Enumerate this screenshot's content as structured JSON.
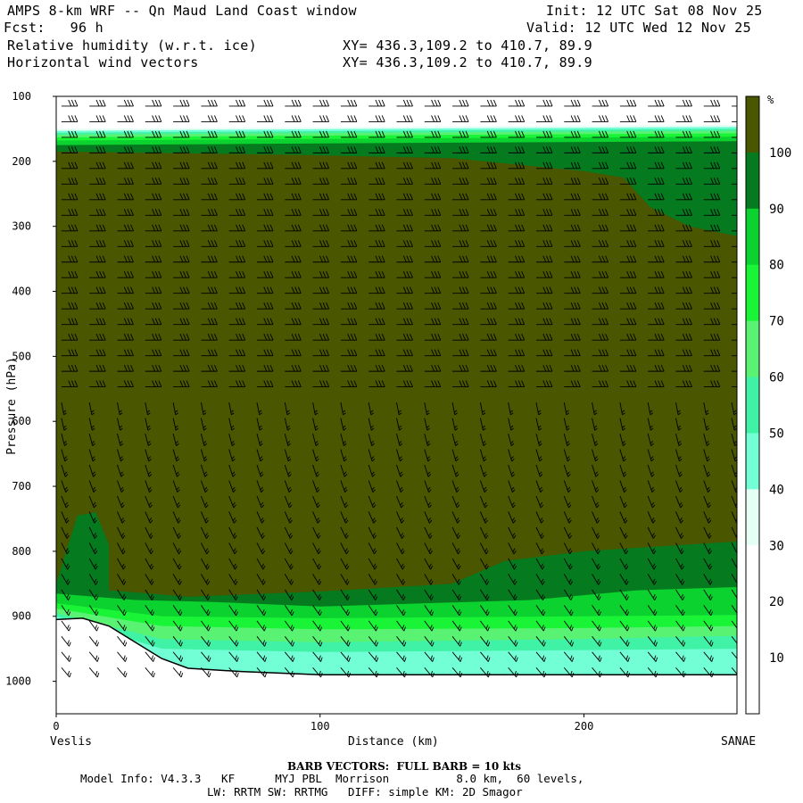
{
  "header": {
    "title": "AMPS 8-km WRF -- Qn Maud Land Coast window",
    "init_text": "Init: 12 UTC Sat 08 Nov 25",
    "fcst_text": "Fcst:   96 h",
    "valid_text": "Valid: 12 UTC Wed 12 Nov 25",
    "field1": "Relative humidity (w.r.t. ice)",
    "field2": "Horizontal wind vectors",
    "xy1": "XY= 436.3,109.2 to 410.7, 89.9",
    "xy2": "XY= 436.3,109.2 to 410.7, 89.9"
  },
  "footer": {
    "barb_note": "BARB VECTORS:  FULL BARB = 10 kts",
    "model_info": "Model Info: V4.3.3   KF      MYJ PBL  Morrison          8.0 km,  60 levels,",
    "model_info2": "LW: RRTM SW: RRTMG   DIFF: simple KM: 2D Smagor"
  },
  "colors": {
    "rh_0_30": "#ffffff",
    "rh_30_40": "#e6fff5",
    "rh_40_50": "#73ffd6",
    "rh_50_60": "#3ff2a6",
    "rh_60_70": "#59f273",
    "rh_70_80": "#19f536",
    "rh_80_90": "#0cd22f",
    "rh_90_100": "#057a1e",
    "rh_100": "#4a5600"
  },
  "chart_data": {
    "type": "heatmap",
    "title": "Relative humidity (w.r.t. ice)",
    "overlay": "Horizontal wind vectors",
    "xlabel": "Distance (km)",
    "ylabel": "Pressure (hPa)",
    "x_ticks": [
      0,
      100,
      200
    ],
    "y_ticks": [
      100,
      200,
      300,
      400,
      500,
      600,
      700,
      800,
      900,
      1000
    ],
    "xlim": [
      0,
      258
    ],
    "ylim": [
      1050,
      100
    ],
    "y_scale": "linear, inverted",
    "left_endpoint": "Veslis",
    "right_endpoint": "SANAE",
    "colorbar": {
      "unit": "%",
      "levels": [
        10,
        20,
        30,
        40,
        50,
        60,
        70,
        80,
        90,
        100
      ]
    },
    "terrain_surface_pressure": [
      [
        0,
        905
      ],
      [
        10,
        903
      ],
      [
        20,
        915
      ],
      [
        30,
        940
      ],
      [
        40,
        965
      ],
      [
        50,
        980
      ],
      [
        70,
        985
      ],
      [
        100,
        990
      ],
      [
        150,
        990
      ],
      [
        200,
        990
      ],
      [
        258,
        990
      ]
    ]
  }
}
